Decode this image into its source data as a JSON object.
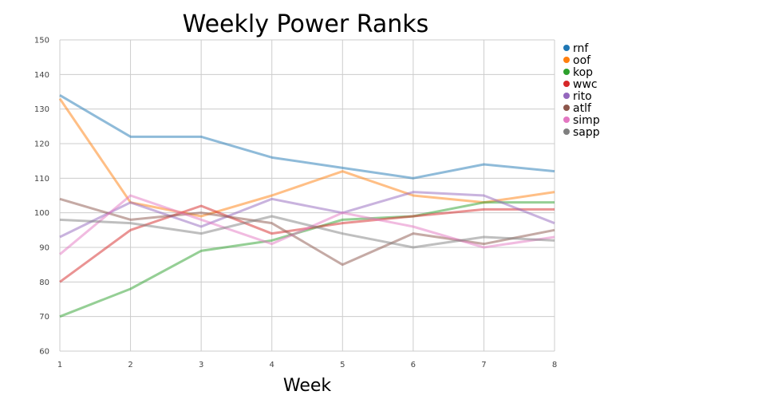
{
  "chart_data": {
    "type": "line",
    "title": "Weekly Power Ranks",
    "xlabel": "Week",
    "ylabel": "",
    "x": [
      1,
      2,
      3,
      4,
      5,
      6,
      7,
      8
    ],
    "xlim": [
      1,
      8
    ],
    "ylim": [
      60,
      150
    ],
    "yticks": [
      60,
      70,
      80,
      90,
      100,
      110,
      120,
      130,
      140,
      150
    ],
    "grid": true,
    "legend_position": "top-right",
    "series": [
      {
        "name": "rnf",
        "color": "#1f77b4",
        "values": [
          134,
          122,
          122,
          116,
          113,
          110,
          114,
          112
        ]
      },
      {
        "name": "oof",
        "color": "#ff7f0e",
        "values": [
          133,
          103,
          99,
          105,
          112,
          105,
          103,
          106
        ]
      },
      {
        "name": "kop",
        "color": "#2ca02c",
        "values": [
          70,
          78,
          89,
          92,
          98,
          99,
          103,
          103
        ]
      },
      {
        "name": "wwc",
        "color": "#d62728",
        "values": [
          80,
          95,
          102,
          94,
          97,
          99,
          101,
          101
        ]
      },
      {
        "name": "rito",
        "color": "#9467bd",
        "values": [
          93,
          103,
          96,
          104,
          100,
          106,
          105,
          97
        ]
      },
      {
        "name": "atlf",
        "color": "#8c564b",
        "values": [
          104,
          98,
          100,
          97,
          85,
          94,
          91,
          95
        ]
      },
      {
        "name": "simp",
        "color": "#e377c2",
        "values": [
          88,
          105,
          98,
          91,
          100,
          96,
          90,
          93
        ]
      },
      {
        "name": "sapp",
        "color": "#7f7f7f",
        "values": [
          98,
          97,
          94,
          99,
          94,
          90,
          93,
          92
        ]
      }
    ]
  }
}
